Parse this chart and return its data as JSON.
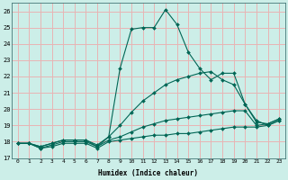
{
  "xlabel": "Humidex (Indice chaleur)",
  "xlim": [
    -0.5,
    23.5
  ],
  "ylim": [
    17,
    26.5
  ],
  "yticks": [
    17,
    18,
    19,
    20,
    21,
    22,
    23,
    24,
    25,
    26
  ],
  "xticks": [
    0,
    1,
    2,
    3,
    4,
    5,
    6,
    7,
    8,
    9,
    10,
    11,
    12,
    13,
    14,
    15,
    16,
    17,
    18,
    19,
    20,
    21,
    22,
    23
  ],
  "bg_color": "#cceee8",
  "grid_color": "#e8b4b4",
  "line_color": "#006655",
  "series": [
    {
      "x": [
        0,
        1,
        2,
        3,
        4,
        5,
        6,
        7,
        8,
        9,
        10,
        11,
        12,
        13,
        14,
        15,
        16,
        17,
        18,
        19,
        20,
        21,
        22,
        23
      ],
      "y": [
        17.9,
        17.9,
        17.6,
        17.7,
        17.9,
        17.9,
        17.9,
        17.6,
        18.0,
        18.1,
        18.2,
        18.3,
        18.4,
        18.4,
        18.5,
        18.5,
        18.6,
        18.7,
        18.8,
        18.9,
        18.9,
        18.9,
        19.0,
        19.3
      ]
    },
    {
      "x": [
        0,
        1,
        2,
        3,
        4,
        5,
        6,
        7,
        8,
        9,
        10,
        11,
        12,
        13,
        14,
        15,
        16,
        17,
        18,
        19,
        20,
        21,
        22,
        23
      ],
      "y": [
        17.9,
        17.9,
        17.6,
        17.8,
        18.0,
        18.0,
        18.0,
        17.7,
        18.1,
        18.3,
        18.6,
        18.9,
        19.1,
        19.3,
        19.4,
        19.5,
        19.6,
        19.7,
        19.8,
        19.9,
        19.9,
        19.0,
        19.1,
        19.4
      ]
    },
    {
      "x": [
        0,
        1,
        2,
        3,
        4,
        5,
        6,
        7,
        8,
        9,
        10,
        11,
        12,
        13,
        14,
        15,
        16,
        17,
        18,
        19,
        20,
        21,
        22,
        23
      ],
      "y": [
        17.9,
        17.9,
        17.7,
        17.9,
        18.1,
        18.1,
        18.1,
        17.8,
        18.3,
        19.0,
        19.8,
        20.5,
        21.0,
        21.5,
        21.8,
        22.0,
        22.2,
        22.3,
        21.8,
        21.5,
        20.3,
        19.2,
        19.1,
        19.4
      ]
    },
    {
      "x": [
        0,
        1,
        2,
        3,
        4,
        5,
        6,
        7,
        8,
        9,
        10,
        11,
        12,
        13,
        14,
        15,
        16,
        17,
        18,
        19,
        20,
        21,
        22,
        23
      ],
      "y": [
        17.9,
        17.9,
        17.7,
        17.9,
        18.1,
        18.1,
        18.1,
        17.7,
        18.3,
        22.5,
        24.9,
        25.0,
        25.0,
        26.1,
        25.2,
        23.5,
        22.5,
        21.8,
        22.2,
        22.2,
        20.3,
        19.3,
        19.0,
        19.3
      ]
    }
  ]
}
